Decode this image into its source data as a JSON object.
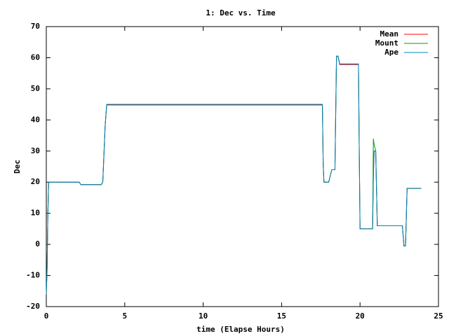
{
  "chart_data": {
    "type": "line",
    "title": "1: Dec vs. Time",
    "xlabel": "time (Elapse Hours)",
    "ylabel": "Dec",
    "x": [
      0,
      0.05,
      0.1,
      0.15,
      2.1,
      2.2,
      3.5,
      3.6,
      3.75,
      3.85,
      17.6,
      17.65,
      17.7,
      18.0,
      18.2,
      18.4,
      18.5,
      18.6,
      18.7,
      19.9,
      19.95,
      20.0,
      20.8,
      20.85,
      20.9,
      21.0,
      21.1,
      22.7,
      22.8,
      22.9,
      23.0,
      23.9
    ],
    "series": [
      {
        "name": "Mean",
        "color": "#ff0000",
        "values": [
          -16,
          -8,
          10,
          20,
          20,
          19.2,
          19.2,
          20,
          38,
          44.8,
          44.8,
          26,
          20,
          20,
          24,
          24,
          60.5,
          60.5,
          57.8,
          57.8,
          30,
          5,
          5,
          22,
          30,
          30,
          6,
          6,
          -0.5,
          -0.5,
          18,
          18
        ]
      },
      {
        "name": "Mount",
        "color": "#00a000",
        "values": [
          -16,
          -8,
          10,
          20,
          20,
          19.2,
          19.2,
          20,
          38,
          45,
          45,
          26,
          20,
          20,
          24,
          24,
          60.5,
          60.5,
          58,
          58,
          30,
          5,
          5,
          34,
          32,
          30,
          6,
          6,
          -0.5,
          -0.5,
          18,
          18
        ]
      },
      {
        "name": "Ape",
        "color": "#0080c0",
        "values": [
          -16,
          -8,
          10,
          20,
          20,
          19.2,
          19.2,
          20,
          38,
          45,
          45,
          26,
          20,
          20,
          24,
          24,
          60.5,
          60.5,
          58,
          58,
          30,
          5,
          5,
          22,
          30,
          30,
          6,
          6,
          -0.5,
          -0.5,
          18,
          18
        ]
      }
    ],
    "xlim": [
      0,
      25
    ],
    "xticks": [
      0,
      5,
      10,
      15,
      20,
      25
    ],
    "ylim": [
      -20,
      70
    ],
    "yticks": [
      -20,
      -10,
      0,
      10,
      20,
      30,
      40,
      50,
      60,
      70
    ],
    "legend": "top-right",
    "grid": false
  }
}
